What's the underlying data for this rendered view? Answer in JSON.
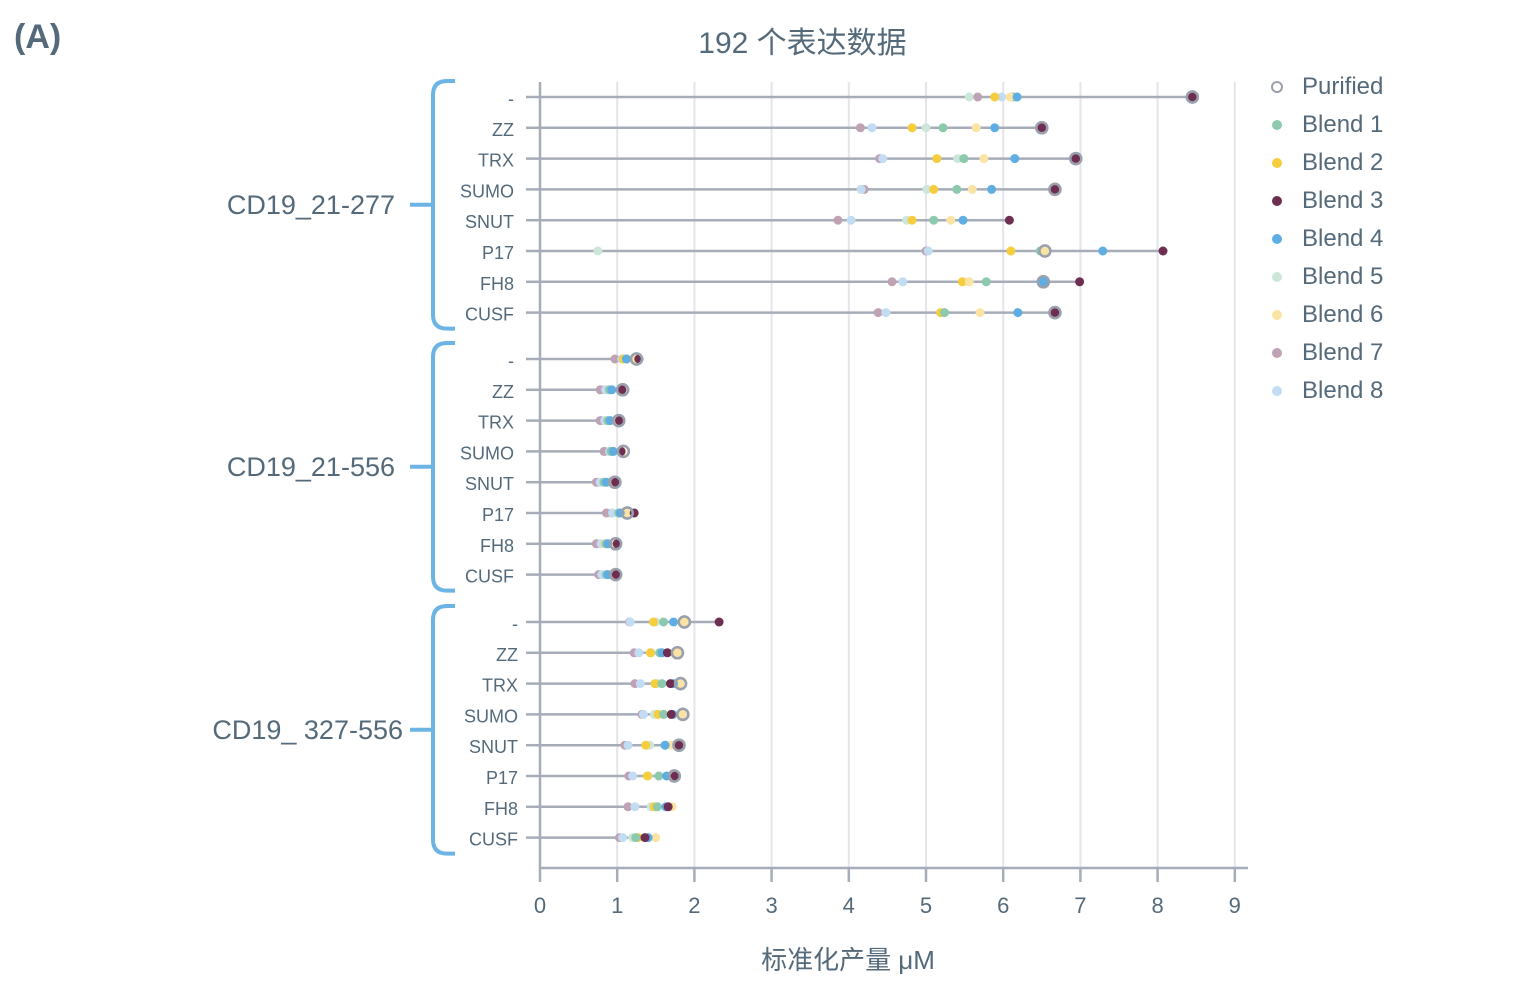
{
  "panel_label": "(A)",
  "title": "192 个表达数据",
  "legend": [
    {
      "name": "Purified",
      "color": "#9aa1ad",
      "hollow": true
    },
    {
      "name": "Blend 1",
      "color": "#8dc9ad"
    },
    {
      "name": "Blend 2",
      "color": "#f5cd3d"
    },
    {
      "name": "Blend 3",
      "color": "#6e2e52"
    },
    {
      "name": "Blend 4",
      "color": "#5eaee3"
    },
    {
      "name": "Blend 5",
      "color": "#cde6da"
    },
    {
      "name": "Blend 6",
      "color": "#fbe3a3"
    },
    {
      "name": "Blend 7",
      "color": "#bfa2b3"
    },
    {
      "name": "Blend 8",
      "color": "#c2dcf4"
    }
  ],
  "chart_data": {
    "type": "scatter",
    "subtype": "dot-strip (lollipop) plot, horizontal",
    "title": "192 个表达数据",
    "xlabel": "标准化产量 μM",
    "ylabel": "",
    "xlim": [
      0,
      9
    ],
    "xticks": [
      0,
      1,
      2,
      3,
      4,
      5,
      6,
      7,
      8,
      9
    ],
    "grid": "vertical gridlines at each integer",
    "legend_position": "right",
    "series_names": [
      "Purified",
      "Blend 1",
      "Blend 2",
      "Blend 3",
      "Blend 4",
      "Blend 5",
      "Blend 6",
      "Blend 7",
      "Blend 8"
    ],
    "groups": [
      {
        "name": "CD19_21-277",
        "rows": [
          {
            "tag": "-",
            "Purified": 8.45,
            "Blend 1": 6.13,
            "Blend 2": 5.89,
            "Blend 3": 8.45,
            "Blend 4": 6.18,
            "Blend 5": 5.56,
            "Blend 6": 6.09,
            "Blend 7": 5.67,
            "Blend 8": 5.98
          },
          {
            "tag": "ZZ",
            "Purified": 6.5,
            "Blend 1": 5.22,
            "Blend 2": 4.82,
            "Blend 3": 6.5,
            "Blend 4": 5.89,
            "Blend 5": 5.0,
            "Blend 6": 5.65,
            "Blend 7": 4.15,
            "Blend 8": 4.3
          },
          {
            "tag": "TRX",
            "Purified": 6.94,
            "Blend 1": 5.49,
            "Blend 2": 5.14,
            "Blend 3": 6.94,
            "Blend 4": 6.15,
            "Blend 5": 5.41,
            "Blend 6": 5.75,
            "Blend 7": 4.4,
            "Blend 8": 4.44
          },
          {
            "tag": "SUMO",
            "Purified": 6.67,
            "Blend 1": 5.4,
            "Blend 2": 5.1,
            "Blend 3": 6.67,
            "Blend 4": 5.85,
            "Blend 5": 5.01,
            "Blend 6": 5.6,
            "Blend 7": 4.2,
            "Blend 8": 4.16
          },
          {
            "tag": "SNUT",
            "Purified": null,
            "Blend 1": 5.1,
            "Blend 2": 4.82,
            "Blend 3": 6.08,
            "Blend 4": 5.48,
            "Blend 5": 4.75,
            "Blend 6": 5.32,
            "Blend 7": 3.86,
            "Blend 8": 4.03
          },
          {
            "tag": "P17",
            "Purified": 6.54,
            "Blend 1": 6.48,
            "Blend 2": 6.1,
            "Blend 3": 8.07,
            "Blend 4": 7.29,
            "Blend 5": 0.75,
            "Blend 6": 6.54,
            "Blend 7": 5.0,
            "Blend 8": 5.03
          },
          {
            "tag": "FH8",
            "Purified": 6.52,
            "Blend 1": 5.78,
            "Blend 2": 5.47,
            "Blend 3": 6.99,
            "Blend 4": 6.52,
            "Blend 5": 5.55,
            "Blend 6": 5.56,
            "Blend 7": 4.56,
            "Blend 8": 4.7
          },
          {
            "tag": "CUSF",
            "Purified": 6.67,
            "Blend 1": 5.24,
            "Blend 2": 5.19,
            "Blend 3": 6.67,
            "Blend 4": 6.19,
            "Blend 5": 5.23,
            "Blend 6": 5.7,
            "Blend 7": 4.38,
            "Blend 8": 4.48
          }
        ]
      },
      {
        "name": "CD19_21-556",
        "rows": [
          {
            "tag": "-",
            "Purified": 1.25,
            "Blend 1": 1.12,
            "Blend 2": 1.08,
            "Blend 3": 1.28,
            "Blend 4": 1.12,
            "Blend 5": 1.06,
            "Blend 6": 1.25,
            "Blend 7": 0.97,
            "Blend 8": 1.06
          },
          {
            "tag": "ZZ",
            "Purified": 1.07,
            "Blend 1": 0.9,
            "Blend 2": 0.9,
            "Blend 3": 1.06,
            "Blend 4": 0.93,
            "Blend 5": 0.82,
            "Blend 6": 1.06,
            "Blend 7": 0.78,
            "Blend 8": 0.85
          },
          {
            "tag": "TRX",
            "Purified": 1.02,
            "Blend 1": 0.88,
            "Blend 2": 0.88,
            "Blend 3": 1.03,
            "Blend 4": 0.91,
            "Blend 5": 0.8,
            "Blend 6": 1.0,
            "Blend 7": 0.78,
            "Blend 8": 0.84
          },
          {
            "tag": "SUMO",
            "Purified": 1.08,
            "Blend 1": 0.92,
            "Blend 2": 0.93,
            "Blend 3": 1.05,
            "Blend 4": 0.95,
            "Blend 5": 0.85,
            "Blend 6": 1.06,
            "Blend 7": 0.83,
            "Blend 8": 0.9
          },
          {
            "tag": "SNUT",
            "Purified": 0.97,
            "Blend 1": 0.83,
            "Blend 2": 0.83,
            "Blend 3": 0.98,
            "Blend 4": 0.86,
            "Blend 5": 0.75,
            "Blend 6": 0.95,
            "Blend 7": 0.73,
            "Blend 8": 0.78
          },
          {
            "tag": "P17",
            "Purified": 1.13,
            "Blend 1": 1.02,
            "Blend 2": 1.02,
            "Blend 3": 1.22,
            "Blend 4": 1.04,
            "Blend 5": 0.92,
            "Blend 6": 1.12,
            "Blend 7": 0.86,
            "Blend 8": 0.94
          },
          {
            "tag": "FH8",
            "Purified": 0.98,
            "Blend 1": 0.86,
            "Blend 2": 0.85,
            "Blend 3": 1.0,
            "Blend 4": 0.88,
            "Blend 5": 0.75,
            "Blend 6": 0.99,
            "Blend 7": 0.73,
            "Blend 8": 0.79
          },
          {
            "tag": "CUSF",
            "Purified": 0.98,
            "Blend 1": 0.86,
            "Blend 2": 0.87,
            "Blend 3": 0.99,
            "Blend 4": 0.88,
            "Blend 5": 0.77,
            "Blend 6": 0.97,
            "Blend 7": 0.76,
            "Blend 8": 0.8
          }
        ]
      },
      {
        "name": "CD19_ 327-556",
        "rows": [
          {
            "tag": "-",
            "Purified": 1.87,
            "Blend 1": 1.6,
            "Blend 2": 1.47,
            "Blend 3": 2.32,
            "Blend 4": 1.73,
            "Blend 5": 1.5,
            "Blend 6": 1.87,
            "Blend 7": 1.16,
            "Blend 8": 1.17
          },
          {
            "tag": "ZZ",
            "Purified": 1.78,
            "Blend 1": 1.55,
            "Blend 2": 1.43,
            "Blend 3": 1.65,
            "Blend 4": 1.58,
            "Blend 5": 1.44,
            "Blend 6": 1.78,
            "Blend 7": 1.22,
            "Blend 8": 1.28
          },
          {
            "tag": "TRX",
            "Purified": 1.82,
            "Blend 1": 1.58,
            "Blend 2": 1.49,
            "Blend 3": 1.69,
            "Blend 4": 1.73,
            "Blend 5": 1.52,
            "Blend 6": 1.81,
            "Blend 7": 1.23,
            "Blend 8": 1.3
          },
          {
            "tag": "SUMO",
            "Purified": 1.85,
            "Blend 1": 1.6,
            "Blend 2": 1.53,
            "Blend 3": 1.7,
            "Blend 4": 1.72,
            "Blend 5": 1.48,
            "Blend 6": 1.84,
            "Blend 7": 1.32,
            "Blend 8": 1.34
          },
          {
            "tag": "SNUT",
            "Purified": 1.8,
            "Blend 1": 1.62,
            "Blend 2": 1.37,
            "Blend 3": 1.8,
            "Blend 4": 1.62,
            "Blend 5": 1.42,
            "Blend 6": 1.7,
            "Blend 7": 1.1,
            "Blend 8": 1.14
          },
          {
            "tag": "P17",
            "Purified": 1.74,
            "Blend 1": 1.54,
            "Blend 2": 1.39,
            "Blend 3": 1.75,
            "Blend 4": 1.64,
            "Blend 5": 1.4,
            "Blend 6": 1.71,
            "Blend 7": 1.15,
            "Blend 8": 1.2
          },
          {
            "tag": "FH8",
            "Purified": null,
            "Blend 1": 1.52,
            "Blend 2": 1.48,
            "Blend 3": 1.66,
            "Blend 4": 1.63,
            "Blend 5": 1.44,
            "Blend 6": 1.71,
            "Blend 7": 1.14,
            "Blend 8": 1.23
          },
          {
            "tag": "CUSF",
            "Purified": null,
            "Blend 1": 1.24,
            "Blend 2": 1.27,
            "Blend 3": 1.36,
            "Blend 4": 1.4,
            "Blend 5": 1.2,
            "Blend 6": 1.5,
            "Blend 7": 1.03,
            "Blend 8": 1.07
          }
        ]
      }
    ]
  }
}
